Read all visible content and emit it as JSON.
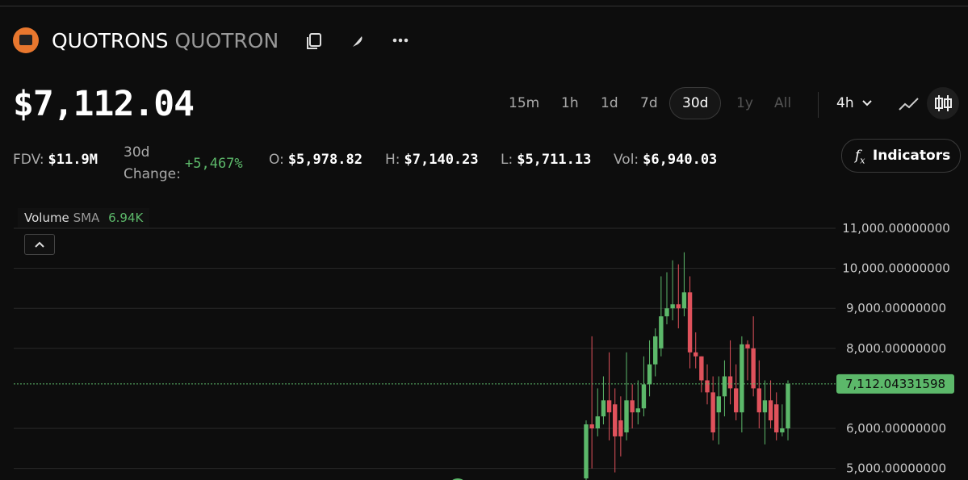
{
  "header": {
    "name": "QUOTRONS",
    "symbol": "QUOTRON"
  },
  "price": "$7,112.04",
  "timeframes": [
    "15m",
    "1h",
    "1d",
    "7d",
    "30d",
    "1y",
    "All"
  ],
  "interval": "4h",
  "stats": [
    {
      "label": "FDV:",
      "value": "$11.9M"
    },
    {
      "label": "30d Change:",
      "value": "+5,467%"
    },
    {
      "label": "O:",
      "value": "$5,978.82"
    },
    {
      "label": "H:",
      "value": "$7,140.23"
    },
    {
      "label": "L:",
      "value": "$5,711.13"
    },
    {
      "label": "Vol:",
      "value": "$6,940.03"
    }
  ],
  "indicators_button": "Indicators",
  "volume_legend": {
    "label": "Volume",
    "sub": "SMA",
    "value": "6.94K"
  },
  "chart_data": {
    "type": "candlestick",
    "ylim": [
      4710,
      11665
    ],
    "yticks": [
      {
        "value": 5000,
        "label": "5,000.00000000"
      },
      {
        "value": 6000,
        "label": "6,000.00000000"
      },
      {
        "value": 8000,
        "label": "8,000.00000000"
      },
      {
        "value": 9000,
        "label": "9,000.00000000"
      },
      {
        "value": 10000,
        "label": "10,000.00000000"
      },
      {
        "value": 11000,
        "label": "11,000.00000000"
      }
    ],
    "last_price": {
      "value": 7112.04331598,
      "label": "7,112.04331598"
    },
    "up_color": "#5cb86a",
    "down_color": "#e0525c",
    "open": [
      4750,
      6100,
      6000,
      6300,
      6700,
      6600,
      6200,
      5900,
      6700,
      6400,
      6500,
      7100,
      7600,
      8000,
      8800,
      9000,
      9100,
      9000,
      9400,
      7900,
      7800,
      7200,
      6900,
      6400,
      6800,
      7300,
      7000,
      6400,
      8100,
      8000,
      7000,
      6400,
      6700,
      6600,
      5900,
      6000
    ],
    "high": [
      6200,
      8300,
      7000,
      7300,
      7900,
      7000,
      6800,
      7900,
      7100,
      7200,
      7800,
      8200,
      8500,
      9800,
      9900,
      10200,
      10100,
      10400,
      9800,
      8400,
      7800,
      7600,
      7300,
      7300,
      7700,
      8200,
      7600,
      8300,
      8200,
      8800,
      7700,
      7200,
      7200,
      6900,
      6600,
      7200
    ],
    "low": [
      4700,
      5000,
      5800,
      6100,
      5700,
      4900,
      5300,
      5700,
      6000,
      6100,
      6300,
      6800,
      7300,
      7800,
      8600,
      8700,
      8500,
      8800,
      7500,
      7500,
      6900,
      6600,
      5700,
      5600,
      6300,
      6600,
      6200,
      5900,
      7200,
      6800,
      6000,
      5600,
      6000,
      5700,
      5800,
      5700
    ],
    "close": [
      6100,
      6000,
      6300,
      6700,
      6400,
      5800,
      5800,
      6700,
      6400,
      6500,
      7100,
      7600,
      8300,
      8800,
      9000,
      9100,
      9000,
      9400,
      7900,
      7800,
      7200,
      6900,
      5900,
      6800,
      7300,
      7000,
      6400,
      8100,
      8000,
      7000,
      6400,
      6700,
      6200,
      5900,
      6000,
      7112
    ]
  }
}
